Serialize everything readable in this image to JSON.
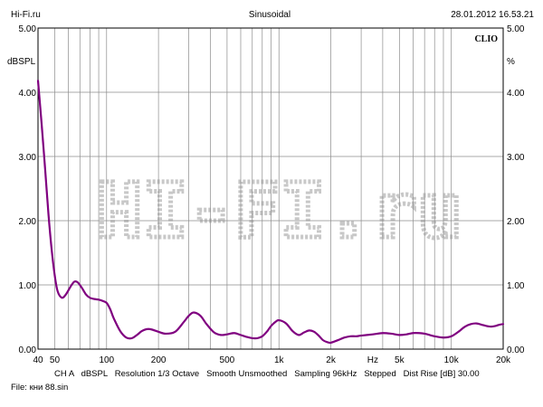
{
  "header": {
    "left": "Hi-Fi.ru",
    "center": "Sinusoidal",
    "right": "28.01.2012 16.53.21"
  },
  "brand": "CLIO",
  "watermark": "HI-FI.ru",
  "footer": {
    "info_line": "CH A   dBSPL   Resolution 1/3 Octave   Smooth Unsmoothed   Sampling 96kHz   Stepped   Dist Rise [dB] 30.00",
    "file": "File: кни 88.sin"
  },
  "colors": {
    "curve": "#800080",
    "grid": "#8c8c8c",
    "watermark": "#c8c8c8"
  },
  "chart_data": {
    "type": "line",
    "xscale": "log",
    "xlim": [
      40,
      20000
    ],
    "ylim": [
      0,
      5
    ],
    "grid": true,
    "ylabel_left": "dBSPL",
    "ylabel_right": "%",
    "yticks": [
      {
        "value": 0,
        "label": "0.00"
      },
      {
        "value": 1,
        "label": "1.00"
      },
      {
        "value": 2,
        "label": "2.00"
      },
      {
        "value": 3,
        "label": "3.00"
      },
      {
        "value": 4,
        "label": "4.00"
      },
      {
        "value": 5,
        "label": "5.00"
      }
    ],
    "xticks": [
      {
        "value": 40,
        "label": "40"
      },
      {
        "value": 50,
        "label": "50"
      },
      {
        "value": 100,
        "label": "100"
      },
      {
        "value": 200,
        "label": "200"
      },
      {
        "value": 500,
        "label": "500"
      },
      {
        "value": 1000,
        "label": "1k"
      },
      {
        "value": 2000,
        "label": "2k"
      },
      {
        "value": 3500,
        "label": "Hz"
      },
      {
        "value": 5000,
        "label": "5k"
      },
      {
        "value": 10000,
        "label": "10k"
      },
      {
        "value": 20000,
        "label": "20k"
      }
    ],
    "gridx": [
      40,
      50,
      60,
      70,
      80,
      90,
      100,
      200,
      300,
      400,
      500,
      600,
      700,
      800,
      900,
      1000,
      2000,
      3000,
      4000,
      5000,
      6000,
      7000,
      8000,
      9000,
      10000,
      20000
    ],
    "series": [
      {
        "x": [
          40,
          42,
          44,
          46,
          48,
          50,
          52,
          55,
          58,
          62,
          65,
          68,
          72,
          76,
          80,
          85,
          90,
          95,
          100,
          105,
          110,
          120,
          130,
          140,
          150,
          160,
          170,
          180,
          200,
          220,
          250,
          280,
          300,
          320,
          350,
          380,
          420,
          460,
          500,
          550,
          600,
          650,
          700,
          750,
          800,
          850,
          900,
          950,
          1000,
          1100,
          1200,
          1300,
          1400,
          1500,
          1600,
          1700,
          1800,
          1900,
          2000,
          2200,
          2400,
          2600,
          2800,
          3000,
          3500,
          4000,
          4500,
          5000,
          5500,
          6000,
          6500,
          7000,
          7500,
          8000,
          9000,
          10000,
          11000,
          12000,
          13000,
          14000,
          15000,
          16000,
          17000,
          18000,
          19000,
          20000
        ],
        "y": [
          4.18,
          3.5,
          2.8,
          2.1,
          1.55,
          1.15,
          0.9,
          0.8,
          0.85,
          0.98,
          1.05,
          1.04,
          0.95,
          0.85,
          0.8,
          0.78,
          0.77,
          0.75,
          0.72,
          0.62,
          0.48,
          0.28,
          0.18,
          0.17,
          0.22,
          0.28,
          0.31,
          0.31,
          0.27,
          0.24,
          0.27,
          0.42,
          0.52,
          0.57,
          0.52,
          0.39,
          0.26,
          0.22,
          0.23,
          0.25,
          0.22,
          0.19,
          0.17,
          0.17,
          0.2,
          0.27,
          0.36,
          0.42,
          0.45,
          0.4,
          0.28,
          0.22,
          0.26,
          0.29,
          0.27,
          0.21,
          0.14,
          0.11,
          0.1,
          0.14,
          0.18,
          0.2,
          0.2,
          0.21,
          0.23,
          0.25,
          0.24,
          0.22,
          0.23,
          0.25,
          0.25,
          0.24,
          0.22,
          0.2,
          0.18,
          0.2,
          0.27,
          0.35,
          0.39,
          0.4,
          0.38,
          0.36,
          0.35,
          0.36,
          0.38,
          0.39
        ]
      }
    ]
  }
}
